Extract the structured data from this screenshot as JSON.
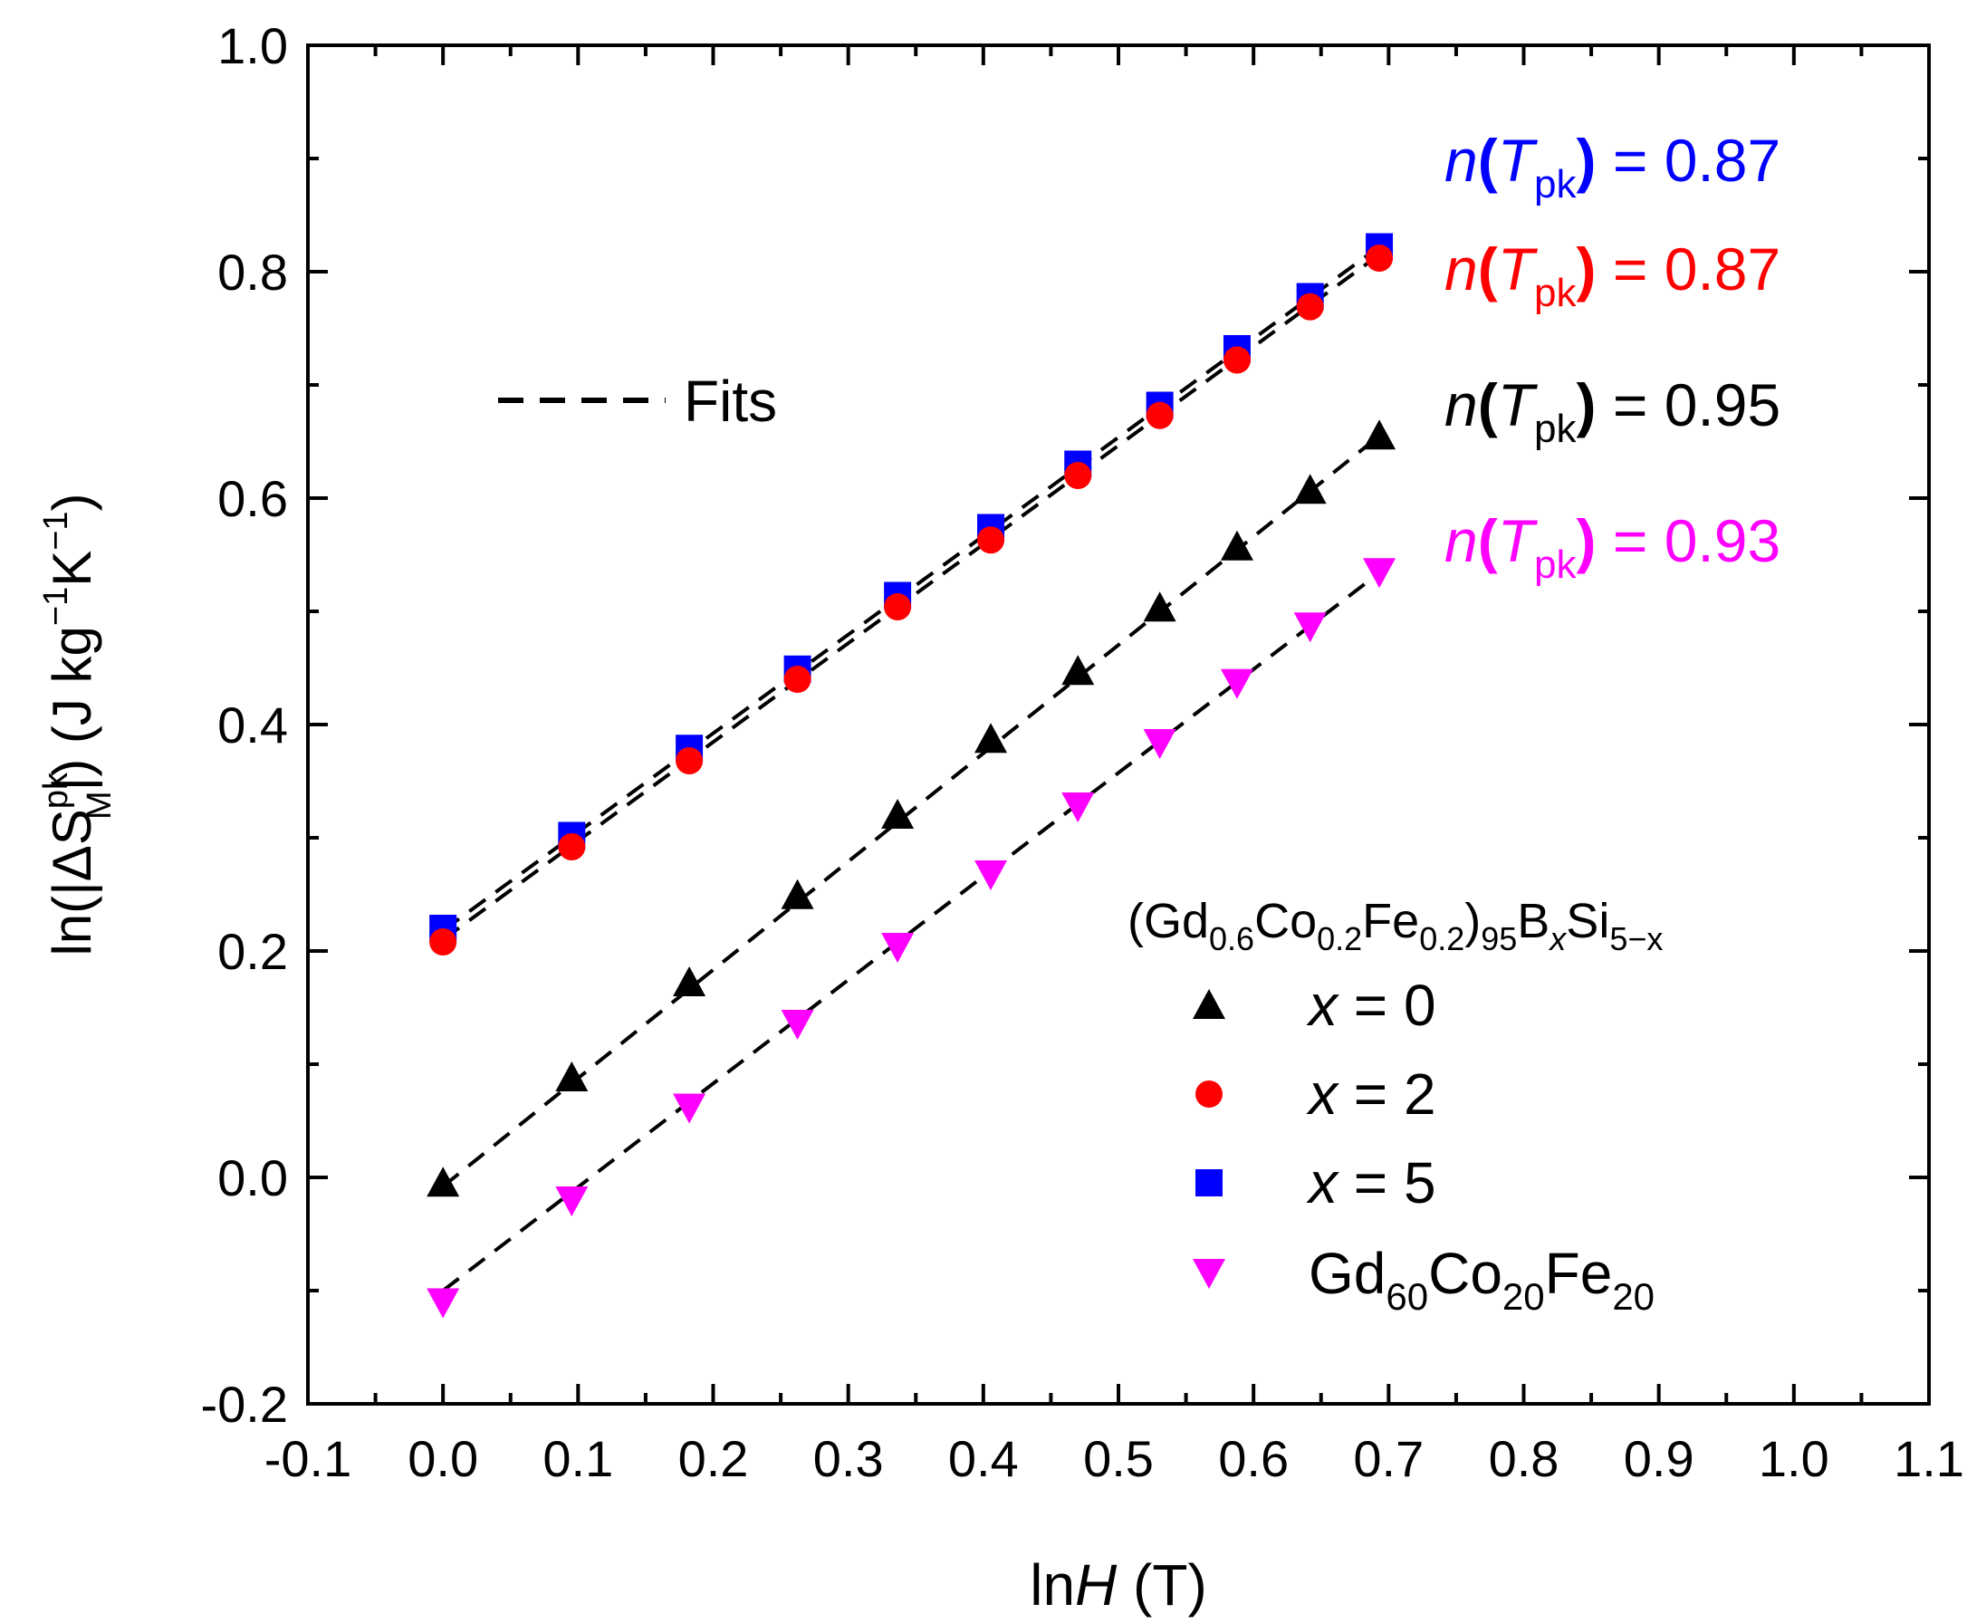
{
  "chart_data": {
    "type": "scatter",
    "xlabel": {
      "prefix": "ln",
      "var": "H",
      "unit": " (T)"
    },
    "ylabel": {
      "text": "ln(|ΔS",
      "sup": "pk",
      "sub": "M",
      "rest": "|) (J kg",
      "exp1": "−1",
      "mid": "K",
      "exp2": "−1",
      "end": ")"
    },
    "xlim": [
      -0.1,
      1.1
    ],
    "ylim": [
      -0.2,
      1.0
    ],
    "xticks": [
      "-0.1",
      "0.0",
      "0.1",
      "0.2",
      "0.3",
      "0.4",
      "0.5",
      "0.6",
      "0.7",
      "0.8",
      "0.9",
      "1.0",
      "1.1"
    ],
    "yticks": [
      "-0.2",
      "0.0",
      "0.2",
      "0.4",
      "0.6",
      "0.8",
      "1.0"
    ],
    "x": [
      0.0,
      0.0953,
      0.1823,
      0.2624,
      0.3365,
      0.4055,
      0.47,
      0.5306,
      0.5878,
      0.6419,
      0.6931
    ],
    "series": [
      {
        "name": "x = 0",
        "marker": "triangle-up",
        "color": "#000000",
        "values": [
          -0.005,
          0.088,
          0.172,
          0.249,
          0.32,
          0.387,
          0.447,
          0.503,
          0.557,
          0.607,
          0.655
        ]
      },
      {
        "name": "x = 2",
        "marker": "circle",
        "color": "#ff0000",
        "values": [
          0.208,
          0.292,
          0.368,
          0.44,
          0.504,
          0.563,
          0.62,
          0.673,
          0.722,
          0.769,
          0.812
        ]
      },
      {
        "name": "x = 5",
        "marker": "square",
        "color": "#0000ff",
        "values": [
          0.22,
          0.302,
          0.379,
          0.449,
          0.514,
          0.574,
          0.63,
          0.682,
          0.732,
          0.778,
          0.822
        ]
      },
      {
        "name": "Gd60Co20Fe20",
        "marker": "triangle-down",
        "color": "#ff00ff",
        "values": [
          -0.11,
          -0.02,
          0.062,
          0.136,
          0.204,
          0.268,
          0.328,
          0.384,
          0.437,
          0.487,
          0.535
        ]
      }
    ],
    "fit_lines": [
      {
        "x": [
          0.0,
          0.6931
        ],
        "y": [
          -0.008,
          0.655
        ]
      },
      {
        "x": [
          0.0,
          0.6931
        ],
        "y": [
          0.21,
          0.815
        ]
      },
      {
        "x": [
          0.0,
          0.6931
        ],
        "y": [
          0.218,
          0.822
        ]
      },
      {
        "x": [
          0.0,
          0.6931
        ],
        "y": [
          -0.1,
          0.534
        ]
      }
    ],
    "fits_legend_label": "Fits",
    "n_annotations": [
      {
        "color": "#0000ff",
        "value": "0.87"
      },
      {
        "color": "#ff0000",
        "value": "0.87"
      },
      {
        "color": "#000000",
        "value": "0.95"
      },
      {
        "color": "#ff00ff",
        "value": "0.93"
      }
    ],
    "n_label": {
      "n": "n",
      "T": "T",
      "sub": "pk",
      "eq": " = "
    },
    "legend_title": {
      "a": "(Gd",
      "s1": "0.6",
      "b": "Co",
      "s2": "0.2",
      "c": "Fe",
      "s3": "0.2",
      "d": ")",
      "s4": "95",
      "e": "B",
      "s5": "x",
      "f": "Si",
      "s6": "5−x"
    },
    "legend_entries": [
      {
        "var": "x",
        "rest": " = 0"
      },
      {
        "var": "x",
        "rest": " = 2"
      },
      {
        "var": "x",
        "rest": " = 5"
      }
    ],
    "legend_gd": {
      "a": "Gd",
      "s1": "60",
      "b": "Co",
      "s2": "20",
      "c": "Fe",
      "s3": "20"
    }
  }
}
